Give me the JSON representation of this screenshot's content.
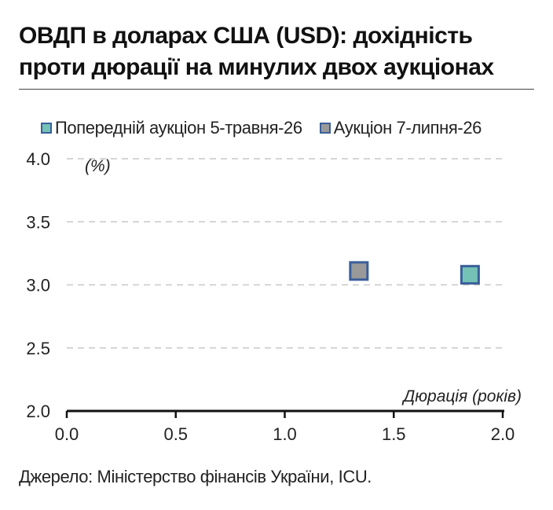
{
  "title_line1": "ОВДП в доларах США (USD): дохідність",
  "title_line2": "проти дюрації на минулих двох аукціонах",
  "source": "Джерело: Міністерство фінансів України, ICU.",
  "colors": {
    "teal": "#74c2b6",
    "gray": "#999999",
    "border": "#3a5f9a",
    "grid": "#c8c8c8"
  },
  "chart_data": {
    "type": "scatter",
    "title": "ОВДП в доларах США (USD): дохідність проти дюрації на минулих двох аукціонах",
    "xlabel": "Дюрація (років)",
    "ylabel": "(%)",
    "xlim": [
      0.0,
      2.0
    ],
    "ylim": [
      2.0,
      4.0
    ],
    "x_ticks": [
      "0.0",
      "0.5",
      "1.0",
      "1.5",
      "2.0"
    ],
    "y_ticks": [
      "2.0",
      "2.5",
      "3.0",
      "3.5",
      "4.0"
    ],
    "grid": "horizontal-dashed",
    "legend_position": "top",
    "series": [
      {
        "name": "Попередній аукціон 5-травня-26",
        "color": "#74c2b6",
        "points": [
          {
            "x": 1.85,
            "y": 3.08
          }
        ]
      },
      {
        "name": "Аукціон 7-липня-26",
        "color": "#999999",
        "points": [
          {
            "x": 1.34,
            "y": 3.11
          }
        ]
      }
    ]
  }
}
